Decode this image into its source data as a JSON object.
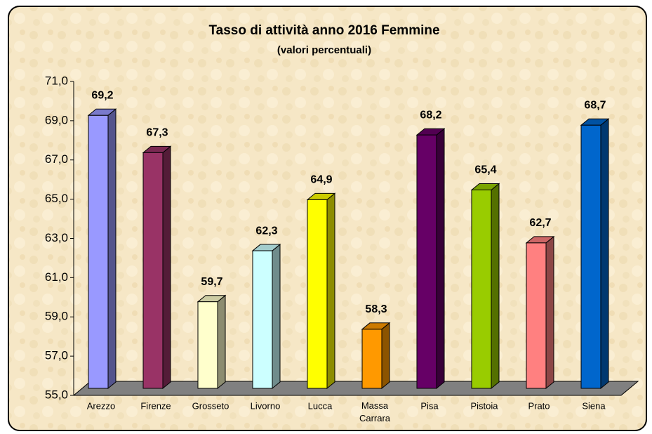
{
  "chart_data": {
    "type": "bar3d",
    "title": "Tasso di attività anno 2016 Femmine",
    "subtitle": "(valori percentuali)",
    "categories": [
      "Arezzo",
      "Firenze",
      "Grosseto",
      "Livorno",
      "Lucca",
      "Massa Carrara",
      "Pisa",
      "Pistoia",
      "Prato",
      "Siena"
    ],
    "values": [
      69.2,
      67.3,
      59.7,
      62.3,
      64.9,
      58.3,
      68.2,
      65.4,
      62.7,
      68.7
    ],
    "value_labels": [
      "69,2",
      "67,3",
      "59,7",
      "62,3",
      "64,9",
      "58,3",
      "68,2",
      "65,4",
      "62,7",
      "68,7"
    ],
    "colors": [
      "#9999ff",
      "#993366",
      "#ffffcc",
      "#ccffff",
      "#ffff00",
      "#ff9900",
      "#660066",
      "#99cc00",
      "#ff8080",
      "#0066cc"
    ],
    "ylim": [
      55,
      71
    ],
    "yticks": [
      {
        "value": 55,
        "label": "55,0"
      },
      {
        "value": 57,
        "label": "57,0"
      },
      {
        "value": 59,
        "label": "59,0"
      },
      {
        "value": 61,
        "label": "61,0"
      },
      {
        "value": 63,
        "label": "63,0"
      },
      {
        "value": 65,
        "label": "65,0"
      },
      {
        "value": 67,
        "label": "67,0"
      },
      {
        "value": 69,
        "label": "69,0"
      },
      {
        "value": 71,
        "label": "71,0"
      }
    ]
  }
}
